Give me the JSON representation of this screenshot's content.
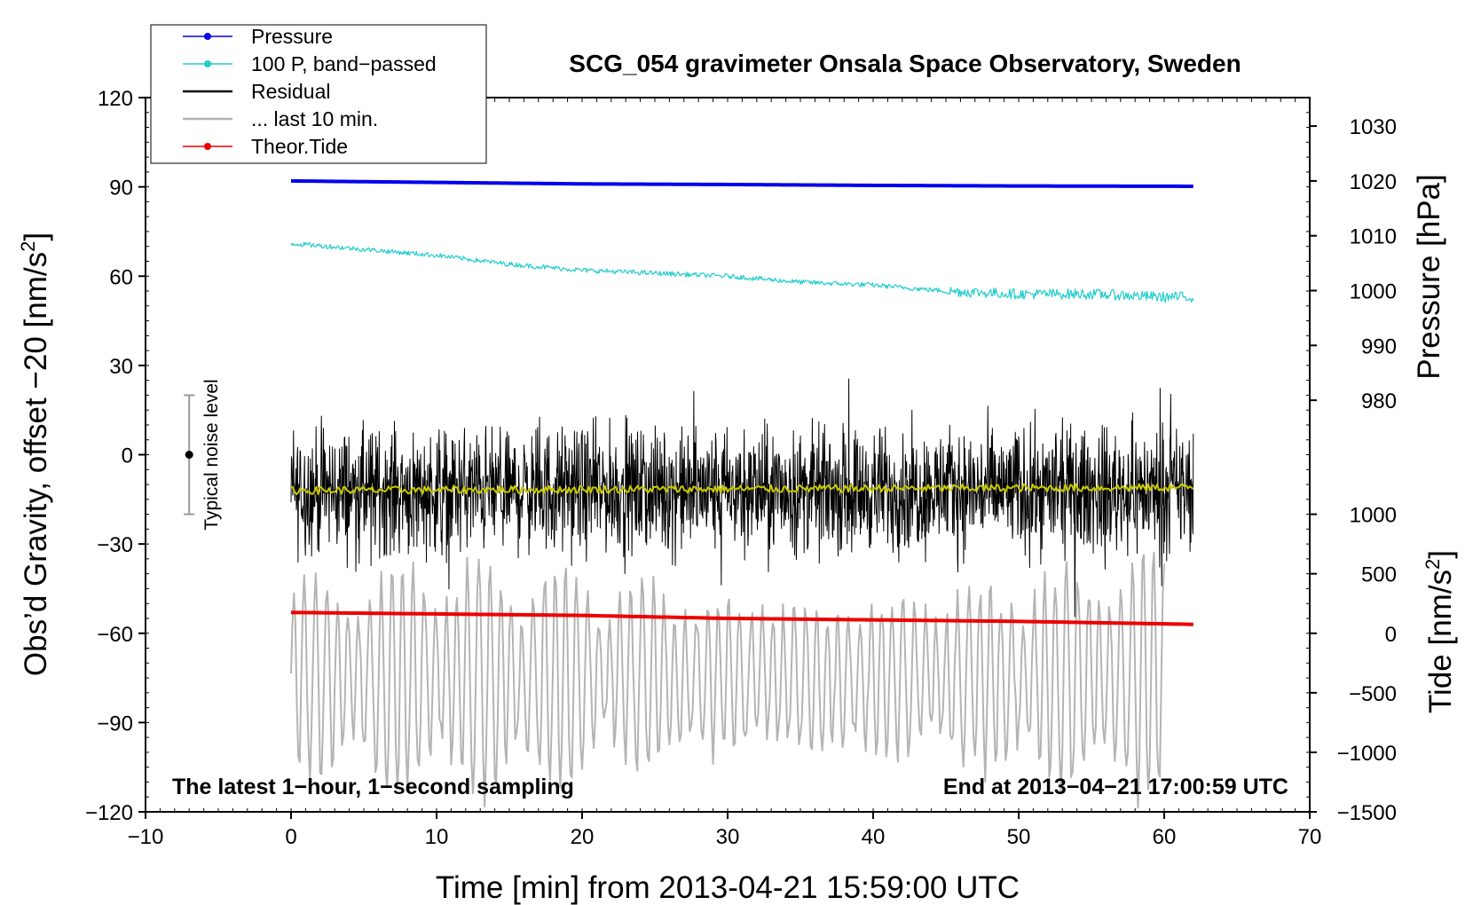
{
  "chart_data": {
    "type": "line",
    "title": "SCG_054 gravimeter Onsala Space Observatory, Sweden",
    "xlabel": "Time [min] from 2013-04-21 15:59:00 UTC",
    "ylabel_left": "Obs’d Gravity, offset −20 [nm/s",
    "ylabel_left_sup": "2",
    "ylabel_left_end": "]",
    "ylabel_pressure": "Pressure [hPa]",
    "ylabel_tide": "Tide [nm/s",
    "ylabel_tide_sup": "2",
    "ylabel_tide_end": "]",
    "xlim": [
      -10,
      70
    ],
    "ylim": [
      -120,
      120
    ],
    "x_ticks": [
      -10,
      0,
      10,
      20,
      30,
      40,
      50,
      60,
      70
    ],
    "x_tick_labels": [
      "−10",
      "0",
      "10",
      "20",
      "30",
      "40",
      "50",
      "60",
      "70"
    ],
    "y_ticks": [
      120,
      90,
      60,
      30,
      0,
      -30,
      -60,
      -90,
      -120
    ],
    "y_tick_labels": [
      "120",
      "90",
      "60",
      "30",
      "0",
      "−30",
      "−60",
      "−90",
      "−120"
    ],
    "pressure_ticks": [
      1030,
      1020,
      1010,
      1000,
      990,
      980
    ],
    "pressure_tick_labels": [
      "1030",
      "1020",
      "1010",
      "1000",
      "990",
      "980"
    ],
    "pressure_axis_map": {
      "1020": 92,
      "980": 18.3
    },
    "tide_ticks": [
      1000,
      500,
      0,
      -500,
      -1000,
      -1500
    ],
    "tide_tick_labels": [
      "1000",
      "500",
      "0",
      "−500",
      "−1000",
      "−1500"
    ],
    "tide_axis_map": {
      "1000": -20,
      "-1500": -120
    },
    "legend": [
      {
        "label": "Pressure",
        "color": "#0000ee",
        "marker": true
      },
      {
        "label": "100 P, band−passed",
        "color": "#22cccc",
        "marker": true
      },
      {
        "label": "Residual",
        "color": "#000000",
        "marker": false
      },
      {
        "label": "... last 10 min.",
        "color": "#b4b4b4",
        "marker": false
      },
      {
        "label": "Theor.Tide",
        "color": "#ee0000",
        "marker": true
      }
    ],
    "noise_bar": {
      "label": "Typical noise level",
      "x": -7,
      "center": 0,
      "low": -20,
      "high": 20
    },
    "annotation_left": "The latest 1−hour, 1−second sampling",
    "annotation_right": "End at 2013−04−21 17:00:59 UTC",
    "series": [
      {
        "name": "Pressure",
        "color": "#0000ee",
        "x": [
          0,
          10,
          20,
          30,
          40,
          50,
          62
        ],
        "y": [
          92,
          91.5,
          91,
          90.8,
          90.5,
          90.3,
          90.2
        ]
      },
      {
        "name": "100 P, band-passed",
        "color": "#22cccc",
        "x": [
          0,
          5,
          10,
          15,
          20,
          25,
          30,
          35,
          40,
          45,
          50,
          55,
          60,
          62
        ],
        "y": [
          71,
          69,
          67,
          64,
          62,
          61,
          60,
          58,
          57,
          55,
          54,
          54,
          53,
          53
        ],
        "noise": 0.8
      },
      {
        "name": "Residual",
        "color": "#000000",
        "x": [
          0,
          62
        ],
        "y": [
          -12,
          -12
        ],
        "amplitude": 40
      },
      {
        "name": "smoothed residual",
        "color": "#c8c800",
        "x": [
          0,
          62
        ],
        "y": [
          -12,
          -11
        ]
      },
      {
        "name": "... last 10 min.",
        "color": "#b4b4b4",
        "x": [
          0,
          60
        ],
        "y": [
          -75,
          -75
        ],
        "amplitude": 40
      },
      {
        "name": "Theor.Tide",
        "color": "#ee0000",
        "x": [
          0,
          10,
          20,
          30,
          40,
          50,
          62
        ],
        "y": [
          -53,
          -53.5,
          -54,
          -55,
          -55.5,
          -56,
          -57
        ]
      }
    ]
  }
}
